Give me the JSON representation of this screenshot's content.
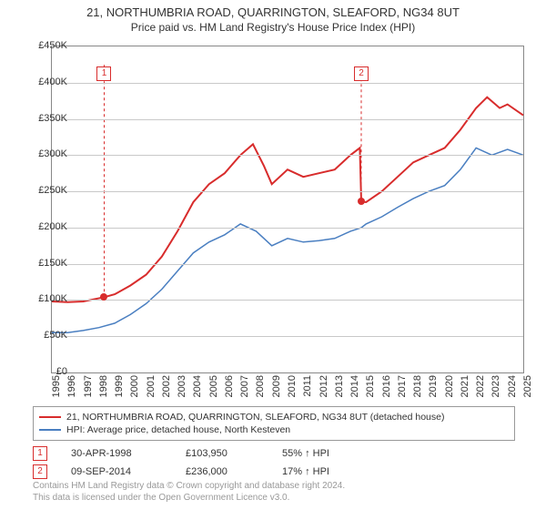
{
  "title": "21, NORTHUMBRIA ROAD, QUARRINGTON, SLEAFORD, NG34 8UT",
  "subtitle": "Price paid vs. HM Land Registry's House Price Index (HPI)",
  "chart": {
    "type": "line",
    "background_color": "#ffffff",
    "grid_color": "#c9c9c9",
    "border_color": "#888888",
    "ylim": [
      0,
      450000
    ],
    "ytick_step": 50000,
    "yticks_fmt": [
      "£0",
      "£50K",
      "£100K",
      "£150K",
      "£200K",
      "£250K",
      "£300K",
      "£350K",
      "£400K",
      "£450K"
    ],
    "xlim": [
      1995,
      2025
    ],
    "xticks": [
      1995,
      1996,
      1997,
      1998,
      1999,
      2000,
      2001,
      2002,
      2003,
      2004,
      2005,
      2006,
      2007,
      2008,
      2009,
      2010,
      2011,
      2012,
      2013,
      2014,
      2015,
      2016,
      2017,
      2018,
      2019,
      2020,
      2021,
      2022,
      2023,
      2024,
      2025
    ],
    "label_fontsize": 11,
    "series": {
      "property": {
        "color": "#d82c2c",
        "line_width": 2,
        "points": [
          [
            1995,
            98000
          ],
          [
            1996,
            97000
          ],
          [
            1997,
            98000
          ],
          [
            1998.33,
            103950
          ],
          [
            1999,
            108000
          ],
          [
            2000,
            120000
          ],
          [
            2001,
            135000
          ],
          [
            2002,
            160000
          ],
          [
            2003,
            195000
          ],
          [
            2004,
            235000
          ],
          [
            2005,
            260000
          ],
          [
            2006,
            275000
          ],
          [
            2007,
            300000
          ],
          [
            2007.8,
            315000
          ],
          [
            2008.5,
            285000
          ],
          [
            2009,
            260000
          ],
          [
            2010,
            280000
          ],
          [
            2011,
            270000
          ],
          [
            2012,
            275000
          ],
          [
            2013,
            280000
          ],
          [
            2014,
            300000
          ],
          [
            2014.6,
            310000
          ],
          [
            2014.69,
            236000
          ],
          [
            2015,
            235000
          ],
          [
            2016,
            250000
          ],
          [
            2017,
            270000
          ],
          [
            2018,
            290000
          ],
          [
            2019,
            300000
          ],
          [
            2020,
            310000
          ],
          [
            2021,
            335000
          ],
          [
            2022,
            365000
          ],
          [
            2022.7,
            380000
          ],
          [
            2023.5,
            365000
          ],
          [
            2024,
            370000
          ],
          [
            2025,
            355000
          ]
        ]
      },
      "hpi": {
        "color": "#4a7fc1",
        "line_width": 1.5,
        "points": [
          [
            1995,
            55000
          ],
          [
            1996,
            55000
          ],
          [
            1997,
            58000
          ],
          [
            1998,
            62000
          ],
          [
            1999,
            68000
          ],
          [
            2000,
            80000
          ],
          [
            2001,
            95000
          ],
          [
            2002,
            115000
          ],
          [
            2003,
            140000
          ],
          [
            2004,
            165000
          ],
          [
            2005,
            180000
          ],
          [
            2006,
            190000
          ],
          [
            2007,
            205000
          ],
          [
            2008,
            195000
          ],
          [
            2009,
            175000
          ],
          [
            2010,
            185000
          ],
          [
            2011,
            180000
          ],
          [
            2012,
            182000
          ],
          [
            2013,
            185000
          ],
          [
            2014,
            195000
          ],
          [
            2014.7,
            200000
          ],
          [
            2015,
            205000
          ],
          [
            2016,
            215000
          ],
          [
            2017,
            228000
          ],
          [
            2018,
            240000
          ],
          [
            2019,
            250000
          ],
          [
            2020,
            258000
          ],
          [
            2021,
            280000
          ],
          [
            2022,
            310000
          ],
          [
            2023,
            300000
          ],
          [
            2024,
            308000
          ],
          [
            2025,
            300000
          ]
        ]
      }
    },
    "sale_markers": [
      {
        "n": "1",
        "x": 1998.33,
        "y": 103950,
        "box_x": 1998.33,
        "box_y": 422000,
        "dot_color": "#d82c2c"
      },
      {
        "n": "2",
        "x": 2014.69,
        "y": 236000,
        "box_x": 2014.69,
        "box_y": 422000,
        "dot_color": "#d82c2c"
      }
    ]
  },
  "legend": {
    "items": [
      {
        "color": "#d82c2c",
        "label": "21, NORTHUMBRIA ROAD, QUARRINGTON, SLEAFORD, NG34 8UT (detached house)"
      },
      {
        "color": "#4a7fc1",
        "label": "HPI: Average price, detached house, North Kesteven"
      }
    ]
  },
  "sales": [
    {
      "n": "1",
      "date": "30-APR-1998",
      "price": "£103,950",
      "hpi": "55% ↑ HPI"
    },
    {
      "n": "2",
      "date": "09-SEP-2014",
      "price": "£236,000",
      "hpi": "17% ↑ HPI"
    }
  ],
  "attribution": {
    "line1": "Contains HM Land Registry data © Crown copyright and database right 2024.",
    "line2": "This data is licensed under the Open Government Licence v3.0."
  }
}
